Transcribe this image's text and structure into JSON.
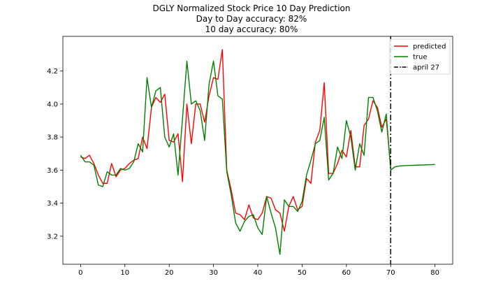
{
  "chart_data": {
    "type": "line",
    "title_lines": [
      "DGLY Normalized Stock Price 10 Day Prediction",
      "Day to Day accuracy: 82%",
      "10 day accuracy: 80%"
    ],
    "xlim": [
      -4,
      84
    ],
    "ylim": [
      3.03,
      4.41
    ],
    "x_ticks": [
      0,
      10,
      20,
      30,
      40,
      50,
      60,
      70,
      80
    ],
    "y_ticks": [
      3.2,
      3.4,
      3.6,
      3.8,
      4.0,
      4.2
    ],
    "x_tick_labels": [
      "0",
      "10",
      "20",
      "30",
      "40",
      "50",
      "60",
      "70",
      "80"
    ],
    "y_tick_labels": [
      "3.2",
      "3.4",
      "3.6",
      "3.8",
      "4.0",
      "4.2"
    ],
    "grid": false,
    "legend_position": "top-right",
    "series": [
      {
        "name": "predicted",
        "color": "#ff0000",
        "style": "solid",
        "x": [
          0,
          1,
          2,
          3,
          4,
          5,
          6,
          7,
          8,
          9,
          10,
          11,
          12,
          13,
          14,
          15,
          16,
          17,
          18,
          19,
          20,
          21,
          22,
          23,
          24,
          25,
          26,
          27,
          28,
          29,
          30,
          31,
          32,
          33,
          34,
          35,
          36,
          37,
          38,
          39,
          40,
          41,
          42,
          43,
          44,
          45,
          46,
          47,
          48,
          49,
          50,
          51,
          52,
          53,
          54,
          55,
          56,
          57,
          58,
          59,
          60,
          61,
          62,
          63,
          64,
          65,
          66,
          67,
          68,
          69,
          70
        ],
        "values": [
          3.68,
          3.67,
          3.69,
          3.64,
          3.57,
          3.52,
          3.52,
          3.64,
          3.56,
          3.6,
          3.61,
          3.64,
          3.66,
          3.67,
          3.8,
          3.73,
          3.98,
          4.04,
          4.01,
          4.06,
          3.78,
          3.77,
          3.82,
          3.53,
          4.0,
          3.76,
          4.0,
          4.0,
          3.89,
          4.05,
          4.16,
          4.15,
          4.33,
          3.6,
          3.48,
          3.34,
          3.33,
          3.3,
          3.39,
          3.31,
          3.3,
          3.34,
          3.44,
          3.43,
          3.36,
          3.34,
          3.23,
          3.38,
          3.44,
          3.36,
          3.38,
          3.55,
          3.52,
          3.77,
          3.84,
          4.13,
          3.58,
          3.58,
          3.64,
          3.72,
          3.68,
          3.84,
          3.62,
          3.62,
          3.87,
          3.91,
          4.02,
          3.98,
          3.86,
          3.91,
          3.62
        ]
      },
      {
        "name": "true",
        "color": "#008000",
        "style": "solid",
        "x": [
          0,
          1,
          2,
          3,
          4,
          5,
          6,
          7,
          8,
          9,
          10,
          11,
          12,
          13,
          14,
          15,
          16,
          17,
          18,
          19,
          20,
          21,
          22,
          23,
          24,
          25,
          26,
          27,
          28,
          29,
          30,
          31,
          32,
          33,
          34,
          35,
          36,
          37,
          38,
          39,
          40,
          41,
          42,
          43,
          44,
          45,
          46,
          47,
          48,
          49,
          50,
          51,
          52,
          53,
          54,
          55,
          56,
          57,
          58,
          59,
          60,
          61,
          62,
          63,
          64,
          65,
          66,
          67,
          68,
          69,
          70,
          71,
          72,
          73,
          74,
          75,
          76,
          77,
          78,
          79,
          80
        ],
        "values": [
          3.69,
          3.65,
          3.65,
          3.63,
          3.51,
          3.5,
          3.59,
          3.57,
          3.57,
          3.61,
          3.6,
          3.61,
          3.65,
          3.76,
          3.71,
          4.16,
          3.98,
          4.08,
          4.1,
          3.8,
          3.74,
          3.82,
          3.57,
          3.91,
          4.26,
          4.0,
          4.02,
          3.96,
          3.78,
          4.12,
          4.26,
          4.05,
          4.03,
          3.59,
          3.45,
          3.28,
          3.23,
          3.29,
          3.32,
          3.33,
          3.25,
          3.21,
          3.44,
          3.34,
          3.25,
          3.09,
          3.42,
          3.38,
          3.38,
          3.35,
          3.41,
          3.57,
          3.66,
          3.76,
          3.78,
          3.92,
          3.54,
          3.58,
          3.74,
          3.67,
          3.9,
          3.8,
          3.6,
          3.76,
          3.69,
          4.04,
          4.04,
          3.96,
          3.83,
          3.94,
          3.6,
          3.62,
          3.625,
          3.627,
          3.628,
          3.629,
          3.63,
          3.631,
          3.632,
          3.633,
          3.634
        ]
      }
    ],
    "vlines": [
      {
        "name": "april 27",
        "x": 70,
        "color": "#000000",
        "style": "dashdot"
      }
    ]
  }
}
